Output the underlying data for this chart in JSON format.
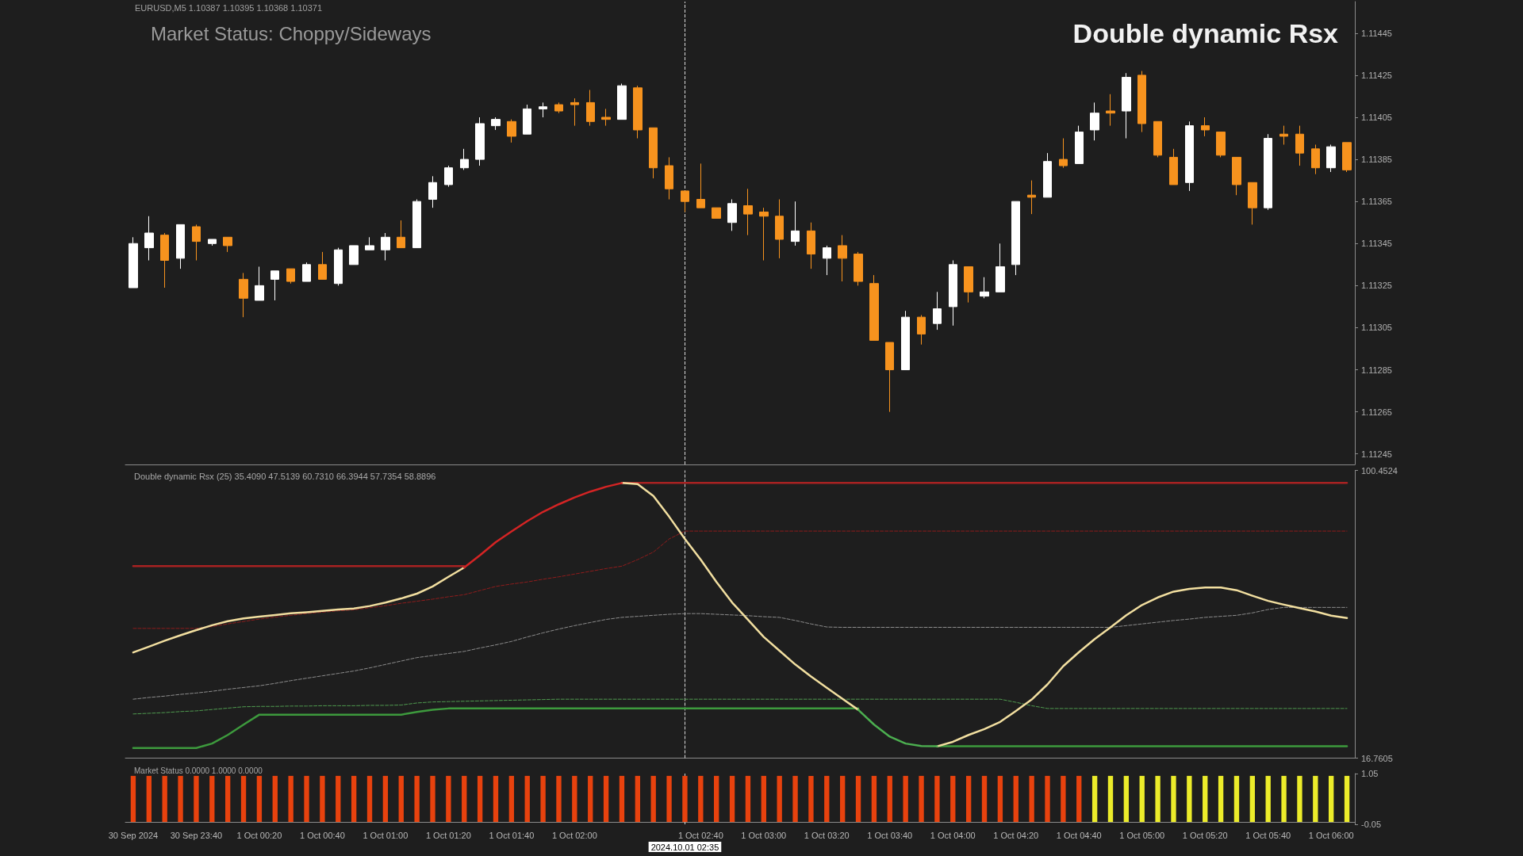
{
  "chart_data": [
    {
      "type": "candlestick",
      "title": "Double dynamic Rsx",
      "subtitle": "EURUSD,M5 1.10387 1.10395 1.10368 1.10371",
      "annotations": [
        "Market Status: Choppy/Sideways"
      ],
      "categories": [
        "30 Sep 2024",
        null,
        null,
        null,
        "30 Sep 23:40",
        null,
        null,
        null,
        "1 Oct 00:20",
        null,
        null,
        null,
        "1 Oct 00:40",
        null,
        null,
        null,
        "1 Oct 01:00",
        null,
        null,
        null,
        "1 Oct 01:20",
        null,
        null,
        null,
        "1 Oct 01:40",
        null,
        null,
        null,
        "1 Oct 02:00",
        null,
        null,
        null,
        null,
        null,
        null,
        "2024.10.01 02:35",
        "1 Oct 02:40",
        null,
        null,
        null,
        "1 Oct 03:00",
        null,
        null,
        null,
        "1 Oct 03:20",
        null,
        null,
        null,
        "1 Oct 03:40",
        null,
        null,
        null,
        "1 Oct 04:00",
        null,
        null,
        null,
        "1 Oct 04:20",
        null,
        null,
        null,
        "1 Oct 04:40",
        null,
        null,
        null,
        "1 Oct 05:00",
        null,
        null,
        null,
        "1 Oct 05:20",
        null,
        null,
        null,
        "1 Oct 05:40",
        null,
        null,
        null,
        "1 Oct 06:00",
        null
      ],
      "ohlc": [
        [
          1.11324,
          1.11348,
          1.11324,
          1.11345
        ],
        [
          1.11343,
          1.11358,
          1.11337,
          1.1135
        ],
        [
          1.11349,
          1.1135,
          1.11324,
          1.11337
        ],
        [
          1.11338,
          1.11354,
          1.11333,
          1.11354
        ],
        [
          1.11353,
          1.11354,
          1.11337,
          1.11346
        ],
        [
          1.11345,
          1.11347,
          1.11344,
          1.11347
        ],
        [
          1.11348,
          1.11348,
          1.11341,
          1.11344
        ],
        [
          1.11328,
          1.11331,
          1.1131,
          1.11319
        ],
        [
          1.11318,
          1.11334,
          1.11318,
          1.11325
        ],
        [
          1.11328,
          1.11332,
          1.11318,
          1.11332
        ],
        [
          1.11333,
          1.11333,
          1.11326,
          1.11327
        ],
        [
          1.11327,
          1.11336,
          1.11327,
          1.11335
        ],
        [
          1.11335,
          1.11341,
          1.11328,
          1.11328
        ],
        [
          1.11326,
          1.11343,
          1.11325,
          1.11342
        ],
        [
          1.11335,
          1.11344,
          1.11335,
          1.11344
        ],
        [
          1.11342,
          1.11348,
          1.11342,
          1.11344
        ],
        [
          1.11342,
          1.1135,
          1.11337,
          1.11348
        ],
        [
          1.11348,
          1.11356,
          1.11343,
          1.11343
        ],
        [
          1.11343,
          1.11366,
          1.11343,
          1.11365
        ],
        [
          1.11366,
          1.11377,
          1.11362,
          1.11374
        ],
        [
          1.11373,
          1.11382,
          1.11372,
          1.11381
        ],
        [
          1.11381,
          1.1139,
          1.1138,
          1.11385
        ],
        [
          1.11385,
          1.11405,
          1.11382,
          1.11402
        ],
        [
          1.11401,
          1.11405,
          1.11399,
          1.11404
        ],
        [
          1.11403,
          1.11404,
          1.11393,
          1.11396
        ],
        [
          1.11397,
          1.11411,
          1.11397,
          1.11409
        ],
        [
          1.11409,
          1.11412,
          1.11405,
          1.1141
        ],
        [
          1.11411,
          1.11412,
          1.11407,
          1.11408
        ],
        [
          1.11412,
          1.11414,
          1.11401,
          1.11411
        ],
        [
          1.11412,
          1.11418,
          1.11401,
          1.11403
        ],
        [
          1.11405,
          1.11409,
          1.11401,
          1.11404
        ],
        [
          1.11404,
          1.11421,
          1.11404,
          1.1142
        ],
        [
          1.11419,
          1.1142,
          1.11395,
          1.11399
        ],
        [
          1.114,
          1.114,
          1.11376,
          1.11381
        ],
        [
          1.11382,
          1.11386,
          1.11366,
          1.11371
        ],
        [
          1.1137,
          1.1137,
          1.1136,
          1.11365
        ],
        [
          1.11366,
          1.11383,
          1.11362,
          1.11362
        ],
        [
          1.11362,
          1.11362,
          1.11357,
          1.11357
        ],
        [
          1.11355,
          1.11366,
          1.11351,
          1.11364
        ],
        [
          1.11363,
          1.11371,
          1.11349,
          1.11359
        ],
        [
          1.1136,
          1.11362,
          1.11337,
          1.11358
        ],
        [
          1.11358,
          1.11366,
          1.11338,
          1.11347
        ],
        [
          1.11346,
          1.11365,
          1.11344,
          1.11351
        ],
        [
          1.11351,
          1.11355,
          1.11333,
          1.1134
        ],
        [
          1.11338,
          1.11344,
          1.1133,
          1.11343
        ],
        [
          1.11344,
          1.11349,
          1.11327,
          1.11338
        ],
        [
          1.1134,
          1.11341,
          1.11325,
          1.11327
        ],
        [
          1.11326,
          1.1133,
          1.11299,
          1.11299
        ],
        [
          1.11298,
          1.11298,
          1.11265,
          1.11285
        ],
        [
          1.11285,
          1.11313,
          1.11285,
          1.1131
        ],
        [
          1.1131,
          1.11311,
          1.11297,
          1.11302
        ],
        [
          1.11307,
          1.11322,
          1.11304,
          1.11314
        ],
        [
          1.11315,
          1.11337,
          1.11306,
          1.11335
        ],
        [
          1.11334,
          1.11334,
          1.11317,
          1.11322
        ],
        [
          1.1132,
          1.11329,
          1.11319,
          1.11322
        ],
        [
          1.11322,
          1.11345,
          1.11322,
          1.11334
        ],
        [
          1.11335,
          1.11365,
          1.1133,
          1.11365
        ],
        [
          1.11368,
          1.11375,
          1.11359,
          1.11367
        ],
        [
          1.11367,
          1.11388,
          1.11367,
          1.11384
        ],
        [
          1.11385,
          1.11395,
          1.11381,
          1.11382
        ],
        [
          1.11383,
          1.11401,
          1.11383,
          1.11398
        ],
        [
          1.11399,
          1.11412,
          1.11394,
          1.11407
        ],
        [
          1.11408,
          1.11416,
          1.11401,
          1.11407
        ],
        [
          1.11408,
          1.11426,
          1.11395,
          1.11424
        ],
        [
          1.11425,
          1.11427,
          1.11398,
          1.11402
        ],
        [
          1.11403,
          1.11403,
          1.11386,
          1.11387
        ],
        [
          1.11386,
          1.1139,
          1.11373,
          1.11373
        ],
        [
          1.11374,
          1.11403,
          1.1137,
          1.11401
        ],
        [
          1.11401,
          1.11405,
          1.11396,
          1.11399
        ],
        [
          1.11398,
          1.11398,
          1.11386,
          1.11387
        ],
        [
          1.11386,
          1.11386,
          1.11368,
          1.11373
        ],
        [
          1.11374,
          1.11374,
          1.11354,
          1.11362
        ],
        [
          1.11362,
          1.11397,
          1.11361,
          1.11395
        ],
        [
          1.11397,
          1.11401,
          1.11392,
          1.11396
        ],
        [
          1.11397,
          1.11401,
          1.11382,
          1.11388
        ],
        [
          1.1139,
          1.11392,
          1.11378,
          1.11381
        ],
        [
          1.11381,
          1.11392,
          1.11379,
          1.11391
        ],
        [
          1.11393,
          1.11393,
          1.11379,
          1.1138
        ]
      ],
      "colors": [
        "#ffffff",
        "#ffffff",
        "#f7931e",
        "#ffffff",
        "#f7931e",
        "#ffffff",
        "#f7931e",
        "#f7931e",
        "#ffffff",
        "#ffffff",
        "#f7931e",
        "#ffffff",
        "#f7931e",
        "#ffffff",
        "#ffffff",
        "#ffffff",
        "#ffffff",
        "#f7931e",
        "#ffffff",
        "#ffffff",
        "#ffffff",
        "#ffffff",
        "#ffffff",
        "#ffffff",
        "#f7931e",
        "#ffffff",
        "#ffffff",
        "#f7931e",
        "#f7931e",
        "#f7931e",
        "#f7931e",
        "#ffffff",
        "#f7931e",
        "#f7931e",
        "#f7931e",
        "#f7931e",
        "#f7931e",
        "#f7931e",
        "#ffffff",
        "#f7931e",
        "#f7931e",
        "#f7931e",
        "#ffffff",
        "#f7931e",
        "#ffffff",
        "#f7931e",
        "#f7931e",
        "#f7931e",
        "#f7931e",
        "#ffffff",
        "#f7931e",
        "#ffffff",
        "#ffffff",
        "#f7931e",
        "#ffffff",
        "#ffffff",
        "#ffffff",
        "#f7931e",
        "#ffffff",
        "#f7931e",
        "#ffffff",
        "#ffffff",
        "#f7931e",
        "#ffffff",
        "#f7931e",
        "#f7931e",
        "#f7931e",
        "#ffffff",
        "#f7931e",
        "#f7931e",
        "#f7931e",
        "#f7931e",
        "#ffffff",
        "#f7931e",
        "#f7931e",
        "#f7931e",
        "#ffffff",
        "#f7931e"
      ],
      "ylim": [
        1.1124,
        1.1146
      ],
      "yticks": [
        1.11245,
        1.11265,
        1.11285,
        1.11305,
        1.11325,
        1.11345,
        1.11365,
        1.11385,
        1.11405,
        1.11425,
        1.11445
      ],
      "tick_labels": "y",
      "ref_lines": [
        {
          "axis": "x",
          "value": "2024.10.01 02:35",
          "color": "#d8d8d8",
          "line_style": "dashed"
        }
      ]
    },
    {
      "type": "line",
      "title": "Double dynamic Rsx (25) 35.4090 47.5139 60.7310 66.3944 57.7354 58.8896",
      "categories": [
        "30 Sep 2024",
        null,
        null,
        null,
        "30 Sep 23:40",
        null,
        null,
        null,
        "1 Oct 00:20",
        null,
        null,
        null,
        "1 Oct 00:40",
        null,
        null,
        null,
        "1 Oct 01:00",
        null,
        null,
        null,
        "1 Oct 01:20",
        null,
        null,
        null,
        "1 Oct 01:40",
        null,
        null,
        null,
        "1 Oct 02:00",
        null,
        null,
        null,
        null,
        null,
        null,
        "2024.10.01 02:35",
        "1 Oct 02:40",
        null,
        null,
        null,
        "1 Oct 03:00",
        null,
        null,
        null,
        "1 Oct 03:20",
        null,
        null,
        null,
        "1 Oct 03:40",
        null,
        null,
        null,
        "1 Oct 04:00",
        null,
        null,
        null,
        "1 Oct 04:20",
        null,
        null,
        null,
        "1 Oct 04:40",
        null,
        null,
        null,
        "1 Oct 05:00",
        null,
        null,
        null,
        "1 Oct 05:20",
        null,
        null,
        null,
        "1 Oct 05:40",
        null,
        null,
        null,
        "1 Oct 06:00",
        null
      ],
      "series": [
        {
          "color": "#8c8c8c",
          "line_style": "dashed",
          "values": [
            33.9,
            34.4,
            34.8,
            35.3,
            35.7,
            36.2,
            36.8,
            37.3,
            37.8,
            38.5,
            39.3,
            40.0,
            40.7,
            41.4,
            42.1,
            43.0,
            44.0,
            45.0,
            46.0,
            46.6,
            47.2,
            47.8,
            48.8,
            49.7,
            50.7,
            52.0,
            53.2,
            54.3,
            55.3,
            56.2,
            57.1,
            57.7,
            58.0,
            58.3,
            58.6,
            58.8,
            58.8,
            58.6,
            58.4,
            58.2,
            57.9,
            57.7,
            56.8,
            55.8,
            54.9,
            54.8,
            54.8,
            54.8,
            54.8,
            54.8,
            54.8,
            54.8,
            54.8,
            54.8,
            54.8,
            54.8,
            54.8,
            54.8,
            54.8,
            54.8,
            54.8,
            54.8,
            54.8,
            55.3,
            55.8,
            56.3,
            56.8,
            57.2,
            57.7,
            58.0,
            58.3,
            59.0,
            60.0,
            60.6,
            60.6,
            60.6,
            60.6,
            60.6
          ]
        },
        {
          "color": "#8e1c1c",
          "line_style": "dashed",
          "values": [
            54.5,
            54.5,
            54.5,
            54.5,
            54.5,
            55.0,
            55.8,
            56.5,
            57.2,
            57.8,
            58.3,
            58.8,
            59.2,
            59.6,
            59.9,
            60.5,
            61.1,
            61.8,
            62.4,
            63.0,
            63.7,
            64.3,
            65.5,
            66.7,
            67.4,
            68.0,
            68.8,
            69.5,
            70.3,
            71.1,
            71.9,
            72.6,
            74.5,
            76.7,
            80.5,
            82.8,
            82.8,
            82.8,
            82.8,
            82.8,
            82.8,
            82.8,
            82.8,
            82.8,
            82.8,
            82.8,
            82.8,
            82.8,
            82.8,
            82.8,
            82.8,
            82.8,
            82.8,
            82.8,
            82.8,
            82.8,
            82.8,
            82.8,
            82.8,
            82.8,
            82.8,
            82.8,
            82.8,
            82.8,
            82.8,
            82.8,
            82.8,
            82.8,
            82.8,
            82.8,
            82.8,
            82.8,
            82.8,
            82.8,
            82.8,
            82.8,
            82.8,
            82.8
          ]
        },
        {
          "color": "#4f9a4f",
          "line_style": "dashed",
          "values": [
            29.6,
            29.8,
            30.0,
            30.3,
            30.5,
            30.9,
            31.3,
            31.7,
            31.8,
            31.8,
            31.9,
            31.9,
            32.0,
            32.0,
            32.0,
            32.1,
            32.1,
            32.2,
            32.8,
            33.1,
            33.2,
            33.3,
            33.4,
            33.5,
            33.6,
            33.7,
            33.8,
            33.9,
            33.9,
            33.9,
            33.9,
            33.9,
            33.9,
            33.9,
            33.9,
            33.9,
            33.9,
            33.9,
            33.9,
            33.9,
            33.9,
            33.9,
            33.9,
            33.9,
            33.9,
            33.9,
            33.9,
            33.9,
            33.9,
            33.9,
            33.9,
            33.9,
            33.9,
            33.9,
            33.9,
            33.9,
            33.0,
            32.0,
            31.2,
            31.2,
            31.2,
            31.2,
            31.2,
            31.2,
            31.2,
            31.2,
            31.2,
            31.2,
            31.2,
            31.2,
            31.2,
            31.2,
            31.2,
            31.2,
            31.2,
            31.2,
            31.2,
            31.2
          ]
        },
        {
          "color": "#a82222",
          "line_style": "solid",
          "values": [
            72.6,
            72.6,
            72.6,
            72.6,
            72.6,
            72.6,
            72.6,
            72.6,
            72.6,
            72.6,
            72.6,
            72.6,
            72.6,
            72.6,
            72.6,
            72.6,
            72.6,
            72.6,
            72.6,
            72.6,
            72.6,
            72.6,
            null,
            null,
            null,
            null,
            null,
            null,
            null,
            null,
            null,
            96.8,
            96.8,
            96.8,
            96.8,
            96.8,
            96.8,
            96.8,
            96.8,
            96.8,
            96.8,
            96.8,
            96.8,
            96.8,
            96.8,
            96.8,
            96.8,
            96.8,
            96.8,
            96.8,
            96.8,
            96.8,
            96.8,
            96.8,
            96.8,
            96.8,
            96.8,
            96.8,
            96.8,
            96.8,
            96.8,
            96.8,
            96.8,
            96.8,
            96.8,
            96.8,
            96.8,
            96.8,
            96.8,
            96.8,
            96.8,
            96.8,
            96.8,
            96.8,
            96.8,
            96.8,
            96.8,
            96.8
          ]
        },
        {
          "color": "#3d9a3d",
          "line_style": "solid",
          "values": [
            19.7,
            19.7,
            19.7,
            19.7,
            19.7,
            21.0,
            23.5,
            26.5,
            29.4,
            29.4,
            29.4,
            29.4,
            29.4,
            29.4,
            29.4,
            29.4,
            29.4,
            29.4,
            30.2,
            30.8,
            31.2,
            31.2,
            31.2,
            31.2,
            31.2,
            31.2,
            31.2,
            31.2,
            31.2,
            31.2,
            31.2,
            31.2,
            31.2,
            31.2,
            31.2,
            31.2,
            31.2,
            31.2,
            31.2,
            31.2,
            31.2,
            31.2,
            31.2,
            31.2,
            31.2,
            31.2,
            31.2,
            null,
            null,
            null,
            null,
            20.2,
            20.2,
            20.2,
            20.2,
            20.2,
            20.2,
            20.2,
            20.2,
            20.2,
            20.2,
            20.2,
            20.2,
            20.2,
            20.2,
            20.2,
            20.2,
            20.2,
            20.2,
            20.2,
            20.2,
            20.2,
            20.2,
            20.2,
            20.2,
            20.2,
            20.2,
            20.2
          ]
        },
        {
          "color": "#f2dfa0",
          "line_style": "solid",
          "values": [
            47.5,
            49.2,
            50.9,
            52.5,
            54.0,
            55.4,
            56.6,
            57.4,
            57.9,
            58.4,
            58.9,
            59.2,
            59.6,
            60.0,
            60.3,
            61.0,
            62.0,
            63.2,
            64.6,
            66.7,
            69.5,
            72.2,
            null,
            null,
            null,
            null,
            null,
            null,
            null,
            null,
            null,
            96.8,
            96.5,
            93.0,
            87.0,
            80.5,
            74.5,
            68.0,
            62.0,
            57.0,
            52.0,
            48.0,
            44.0,
            40.5,
            37.2,
            34.0,
            30.8,
            null,
            null,
            null,
            null,
            20.2,
            21.5,
            23.5,
            25.2,
            27.3,
            30.5,
            33.8,
            38.2,
            43.5,
            47.6,
            51.4,
            54.8,
            58.3,
            61.3,
            63.5,
            65.2,
            66.0,
            66.4,
            66.4,
            65.6,
            64.0,
            62.5,
            61.4,
            60.4,
            59.4,
            58.2,
            57.5
          ]
        },
        {
          "color": "#d42424",
          "line_style": "solid",
          "values": [
            null,
            null,
            null,
            null,
            null,
            null,
            null,
            null,
            null,
            null,
            null,
            null,
            null,
            null,
            null,
            null,
            null,
            null,
            null,
            null,
            null,
            72.2,
            75.8,
            79.6,
            82.7,
            85.7,
            88.4,
            90.6,
            92.6,
            94.3,
            95.7,
            96.8,
            null,
            null,
            null,
            null,
            null,
            null,
            null,
            null,
            null,
            null,
            null,
            null,
            null,
            null,
            null,
            null,
            null,
            null,
            null,
            null,
            null,
            null,
            null,
            null,
            null,
            null,
            null,
            null,
            null,
            null,
            null,
            null,
            null,
            null,
            null,
            null,
            null,
            null,
            null,
            null,
            null,
            null,
            null,
            null,
            null,
            null
          ]
        },
        {
          "color": "#4caf50",
          "line_style": "solid",
          "values": [
            null,
            null,
            null,
            null,
            null,
            null,
            null,
            null,
            null,
            null,
            null,
            null,
            null,
            null,
            null,
            null,
            null,
            null,
            null,
            null,
            null,
            null,
            null,
            null,
            null,
            null,
            null,
            null,
            null,
            null,
            null,
            null,
            null,
            null,
            null,
            null,
            null,
            null,
            null,
            null,
            null,
            null,
            null,
            null,
            null,
            null,
            30.8,
            26.5,
            23.0,
            21.0,
            20.3,
            20.2,
            null,
            null,
            null,
            null,
            null,
            null,
            null,
            null,
            null,
            null,
            null,
            null,
            null,
            null,
            null,
            null,
            null,
            null,
            null,
            null,
            null,
            null,
            null,
            null,
            null,
            null
          ]
        }
      ],
      "ylim": [
        16.7605,
        100.4524
      ],
      "yticks": [
        16.7605,
        100.4524
      ],
      "tick_labels": "y",
      "ref_lines": [
        {
          "axis": "x",
          "value": "2024.10.01 02:35",
          "color": "#d8d8d8",
          "line_style": "dashed"
        }
      ]
    },
    {
      "type": "bar",
      "title": "Market Status 0.0000 1.0000 0.0000",
      "categories": [
        "30 Sep 2024",
        null,
        null,
        null,
        "30 Sep 23:40",
        null,
        null,
        null,
        "1 Oct 00:20",
        null,
        null,
        null,
        "1 Oct 00:40",
        null,
        null,
        null,
        "1 Oct 01:00",
        null,
        null,
        null,
        "1 Oct 01:20",
        null,
        null,
        null,
        "1 Oct 01:40",
        null,
        null,
        null,
        "1 Oct 02:00",
        null,
        null,
        null,
        null,
        null,
        null,
        "2024.10.01 02:35",
        "1 Oct 02:40",
        null,
        null,
        null,
        "1 Oct 03:00",
        null,
        null,
        null,
        "1 Oct 03:20",
        null,
        null,
        null,
        "1 Oct 03:40",
        null,
        null,
        null,
        "1 Oct 04:00",
        null,
        null,
        null,
        "1 Oct 04:20",
        null,
        null,
        null,
        "1 Oct 04:40",
        null,
        null,
        null,
        "1 Oct 05:00",
        null,
        null,
        null,
        "1 Oct 05:20",
        null,
        null,
        null,
        "1 Oct 05:40",
        null,
        null,
        null,
        "1 Oct 06:00",
        null
      ],
      "values": [
        1,
        1,
        1,
        1,
        1,
        1,
        1,
        1,
        1,
        1,
        1,
        1,
        1,
        1,
        1,
        1,
        1,
        1,
        1,
        1,
        1,
        1,
        1,
        1,
        1,
        1,
        1,
        1,
        1,
        1,
        1,
        1,
        1,
        1,
        1,
        1,
        1,
        1,
        1,
        1,
        1,
        1,
        1,
        1,
        1,
        1,
        1,
        1,
        1,
        1,
        1,
        1,
        1,
        1,
        1,
        1,
        1,
        1,
        1,
        1,
        1,
        1,
        1,
        1,
        1,
        1,
        1,
        1,
        1,
        1,
        1,
        1,
        1,
        1,
        1,
        1,
        1,
        1
      ],
      "colors": [
        "#e8420e",
        "#e8420e",
        "#e8420e",
        "#e8420e",
        "#e8420e",
        "#e8420e",
        "#e8420e",
        "#e8420e",
        "#e8420e",
        "#e8420e",
        "#e8420e",
        "#e8420e",
        "#e8420e",
        "#e8420e",
        "#e8420e",
        "#e8420e",
        "#e8420e",
        "#e8420e",
        "#e8420e",
        "#e8420e",
        "#e8420e",
        "#e8420e",
        "#e8420e",
        "#e8420e",
        "#e8420e",
        "#e8420e",
        "#e8420e",
        "#e8420e",
        "#e8420e",
        "#e8420e",
        "#e8420e",
        "#e8420e",
        "#e8420e",
        "#e8420e",
        "#e8420e",
        "#e8420e",
        "#e8420e",
        "#e8420e",
        "#e8420e",
        "#e8420e",
        "#e8420e",
        "#e8420e",
        "#e8420e",
        "#e8420e",
        "#e8420e",
        "#e8420e",
        "#e8420e",
        "#e8420e",
        "#e8420e",
        "#e8420e",
        "#e8420e",
        "#e8420e",
        "#e8420e",
        "#e8420e",
        "#e8420e",
        "#e8420e",
        "#e8420e",
        "#e8420e",
        "#e8420e",
        "#e8420e",
        "#e8420e",
        "#ecec2a",
        "#ecec2a",
        "#ecec2a",
        "#ecec2a",
        "#ecec2a",
        "#ecec2a",
        "#ecec2a",
        "#ecec2a",
        "#ecec2a",
        "#ecec2a",
        "#ecec2a",
        "#ecec2a",
        "#ecec2a",
        "#ecec2a",
        "#ecec2a",
        "#ecec2a",
        "#ecec2a"
      ],
      "ylim": [
        -0.05,
        1.05
      ],
      "yticks": [
        -0.05,
        1.05
      ],
      "ref_lines": [
        {
          "axis": "x",
          "value": "2024.10.01 02:35",
          "color": "#d8d8d8",
          "line_style": "dashed"
        }
      ]
    }
  ]
}
